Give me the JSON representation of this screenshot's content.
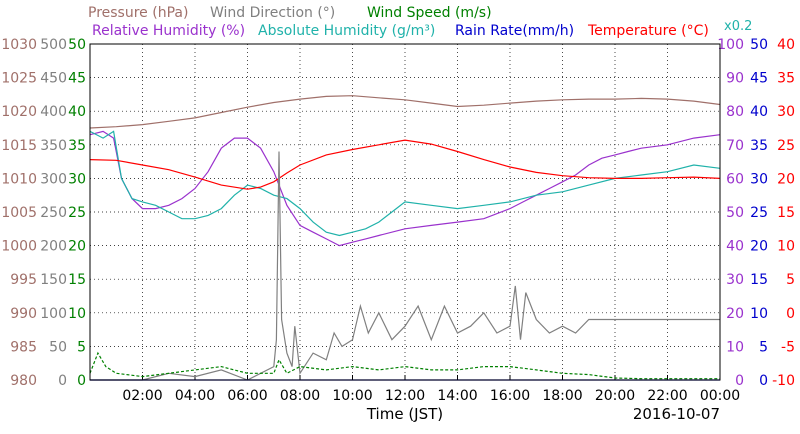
{
  "chart_data": {
    "type": "line",
    "date": "2016-10-07",
    "xlabel": "Time (JST)",
    "legend_row1": [
      {
        "name": "Pressure (hPa)",
        "color": "#a0706a"
      },
      {
        "name": "Wind Direction (°)",
        "color": "#808080"
      },
      {
        "name": "Wind Speed (m/s)",
        "color": "#008000"
      }
    ],
    "legend_row2": [
      {
        "name": "Relative Humidity (%)",
        "color": "#9a32cd"
      },
      {
        "name": "Absolute Humidity (g/m³)",
        "color": "#20b2aa"
      },
      {
        "name": "Rain Rate(mm/h)",
        "color": "#0000cd"
      },
      {
        "name": "Temperature (°C)",
        "color": "#ff0000"
      },
      {
        "name": "x0.2",
        "color": "#20b2aa"
      }
    ],
    "x_ticks": [
      "02:00",
      "04:00",
      "06:00",
      "08:00",
      "10:00",
      "12:00",
      "14:00",
      "16:00",
      "18:00",
      "20:00",
      "22:00",
      "00:00"
    ],
    "axes": {
      "pressure": {
        "color": "#a0706a",
        "min": 980,
        "max": 1030,
        "ticks": [
          "1030",
          "1025",
          "1020",
          "1015",
          "1010",
          "1005",
          "1000",
          "995",
          "990",
          "985",
          "980"
        ]
      },
      "wind_direction": {
        "color": "#808080",
        "min": 0,
        "max": 500,
        "ticks": [
          "500",
          "450",
          "400",
          "350",
          "300",
          "250",
          "200",
          "150",
          "100",
          "50",
          "0"
        ]
      },
      "wind_speed": {
        "color": "#008000",
        "min": 0,
        "max": 50,
        "ticks": [
          "50",
          "45",
          "40",
          "35",
          "30",
          "25",
          "20",
          "15",
          "10",
          "5",
          "0"
        ]
      },
      "humidity": {
        "color": "#9a32cd",
        "min": 0,
        "max": 100,
        "ticks": [
          "100",
          "90",
          "80",
          "70",
          "60",
          "50",
          "40",
          "30",
          "20",
          "10",
          "0"
        ]
      },
      "rain_rate": {
        "color": "#0000cd",
        "min": 0,
        "max": 50,
        "ticks": [
          "50",
          "45",
          "40",
          "35",
          "30",
          "25",
          "20",
          "15",
          "10",
          "5",
          "0"
        ]
      },
      "temperature": {
        "color": "#ff0000",
        "min": -10,
        "max": 40,
        "ticks": [
          "40",
          "35",
          "30",
          "25",
          "20",
          "15",
          "10",
          "5",
          "0",
          "-5",
          "-10"
        ]
      }
    },
    "series": [
      {
        "name": "Pressure (hPa)",
        "axis": "pressure",
        "color": "#a0706a",
        "x": [
          0,
          1,
          2,
          3,
          4,
          5,
          6,
          7,
          8,
          9,
          10,
          11,
          12,
          13,
          14,
          15,
          16,
          17,
          18,
          19,
          20,
          21,
          22,
          23,
          24
        ],
        "y": [
          1017.5,
          1017.7,
          1018.0,
          1018.5,
          1019.0,
          1019.8,
          1020.6,
          1021.3,
          1021.8,
          1022.2,
          1022.3,
          1022.0,
          1021.7,
          1021.2,
          1020.7,
          1020.9,
          1021.2,
          1021.5,
          1021.7,
          1021.8,
          1021.8,
          1021.9,
          1021.8,
          1021.5,
          1021.0
        ]
      },
      {
        "name": "Relative Humidity (%)",
        "axis": "humidity",
        "color": "#9a32cd",
        "x": [
          0,
          0.5,
          0.9,
          1.2,
          1.6,
          2,
          2.5,
          3,
          3.5,
          4,
          4.5,
          5,
          5.5,
          6,
          6.5,
          7,
          7.5,
          8,
          8.5,
          9,
          9.5,
          10,
          10.5,
          11,
          12,
          13,
          14,
          15,
          16,
          16.5,
          17,
          17.5,
          18,
          18.5,
          19,
          19.5,
          20,
          20.5,
          21,
          22,
          23,
          24
        ],
        "y": [
          73,
          74,
          72,
          60,
          54,
          51,
          51,
          52,
          54,
          57,
          62,
          69,
          72,
          72,
          69,
          62,
          52,
          46,
          44,
          42,
          40,
          41,
          42,
          43,
          45,
          46,
          47,
          48,
          51,
          53,
          55,
          57,
          59,
          61,
          64,
          66,
          67,
          68,
          69,
          70,
          72,
          73
        ]
      },
      {
        "name": "Absolute Humidity (g/m³)",
        "axis": "humidity",
        "color": "#20b2aa",
        "x": [
          0,
          0.5,
          0.9,
          1.2,
          1.6,
          2,
          2.5,
          3,
          3.5,
          4,
          4.5,
          5,
          5.5,
          6,
          6.5,
          7,
          7.5,
          8,
          8.5,
          9,
          9.5,
          10,
          10.5,
          11,
          11.5,
          12,
          13,
          14,
          15,
          16,
          17,
          18,
          19,
          20,
          21,
          22,
          23,
          24
        ],
        "y": [
          74,
          72,
          74,
          60,
          54,
          53,
          52,
          50,
          48,
          48,
          49,
          51,
          55,
          58,
          57,
          55,
          54,
          51,
          47,
          44,
          43,
          44,
          45,
          47,
          50,
          53,
          52,
          51,
          52,
          53,
          55,
          56,
          58,
          60,
          61,
          62,
          64,
          63
        ]
      },
      {
        "name": "Temperature (°C)",
        "axis": "temperature",
        "color": "#ff0000",
        "x": [
          0,
          1,
          2,
          3,
          4,
          5,
          6,
          6.5,
          7,
          7.5,
          8,
          9,
          10,
          11,
          12,
          13,
          14,
          15,
          16,
          17,
          18,
          19,
          20,
          21,
          22,
          23,
          24
        ],
        "y": [
          22.8,
          22.7,
          22.0,
          21.3,
          20.2,
          19.0,
          18.4,
          18.7,
          19.5,
          20.8,
          22.0,
          23.5,
          24.3,
          25.0,
          25.7,
          25.1,
          24.0,
          22.8,
          21.7,
          20.9,
          20.4,
          20.1,
          20.0,
          20.0,
          20.1,
          20.2,
          20.0
        ]
      },
      {
        "name": "Wind Direction (°)",
        "axis": "wind_direction",
        "color": "#808080",
        "x": [
          0,
          1,
          2,
          3,
          4,
          5,
          6,
          7,
          7.1,
          7.2,
          7.3,
          7.5,
          7.7,
          7.8,
          8,
          8.5,
          9,
          9.3,
          9.6,
          10,
          10.3,
          10.6,
          11,
          11.5,
          12,
          12.5,
          13,
          13.5,
          14,
          14.5,
          15,
          15.5,
          16,
          16.2,
          16.4,
          16.6,
          17,
          17.5,
          18,
          18.5,
          19,
          20,
          21,
          22,
          23,
          24
        ],
        "y": [
          0,
          0,
          0,
          10,
          5,
          15,
          0,
          20,
          60,
          340,
          90,
          40,
          20,
          80,
          10,
          40,
          30,
          70,
          50,
          60,
          110,
          70,
          100,
          60,
          80,
          110,
          60,
          110,
          70,
          80,
          100,
          70,
          80,
          140,
          60,
          130,
          90,
          70,
          80,
          70,
          90,
          90,
          90,
          90,
          90,
          90
        ]
      },
      {
        "name": "Wind Speed (m/s)",
        "axis": "wind_speed",
        "color": "#008000",
        "x": [
          0,
          0.3,
          0.6,
          1,
          2,
          3,
          4,
          5,
          6,
          7,
          7.2,
          7.5,
          8,
          9,
          10,
          11,
          12,
          13,
          14,
          15,
          16,
          17,
          18,
          19,
          20,
          21,
          22,
          23,
          24
        ],
        "y": [
          1,
          4,
          2,
          1,
          0.5,
          1,
          1.5,
          2,
          1,
          1,
          3,
          1,
          2,
          1.5,
          2,
          1.5,
          2,
          1.5,
          1.5,
          2,
          2,
          1.5,
          1,
          0.8,
          0.3,
          0.2,
          0.2,
          0.2,
          0.2
        ]
      },
      {
        "name": "Rain Rate(mm/h)",
        "axis": "rain_rate",
        "color": "#0000cd",
        "x": [
          0,
          24
        ],
        "y": [
          0,
          0
        ]
      }
    ]
  }
}
